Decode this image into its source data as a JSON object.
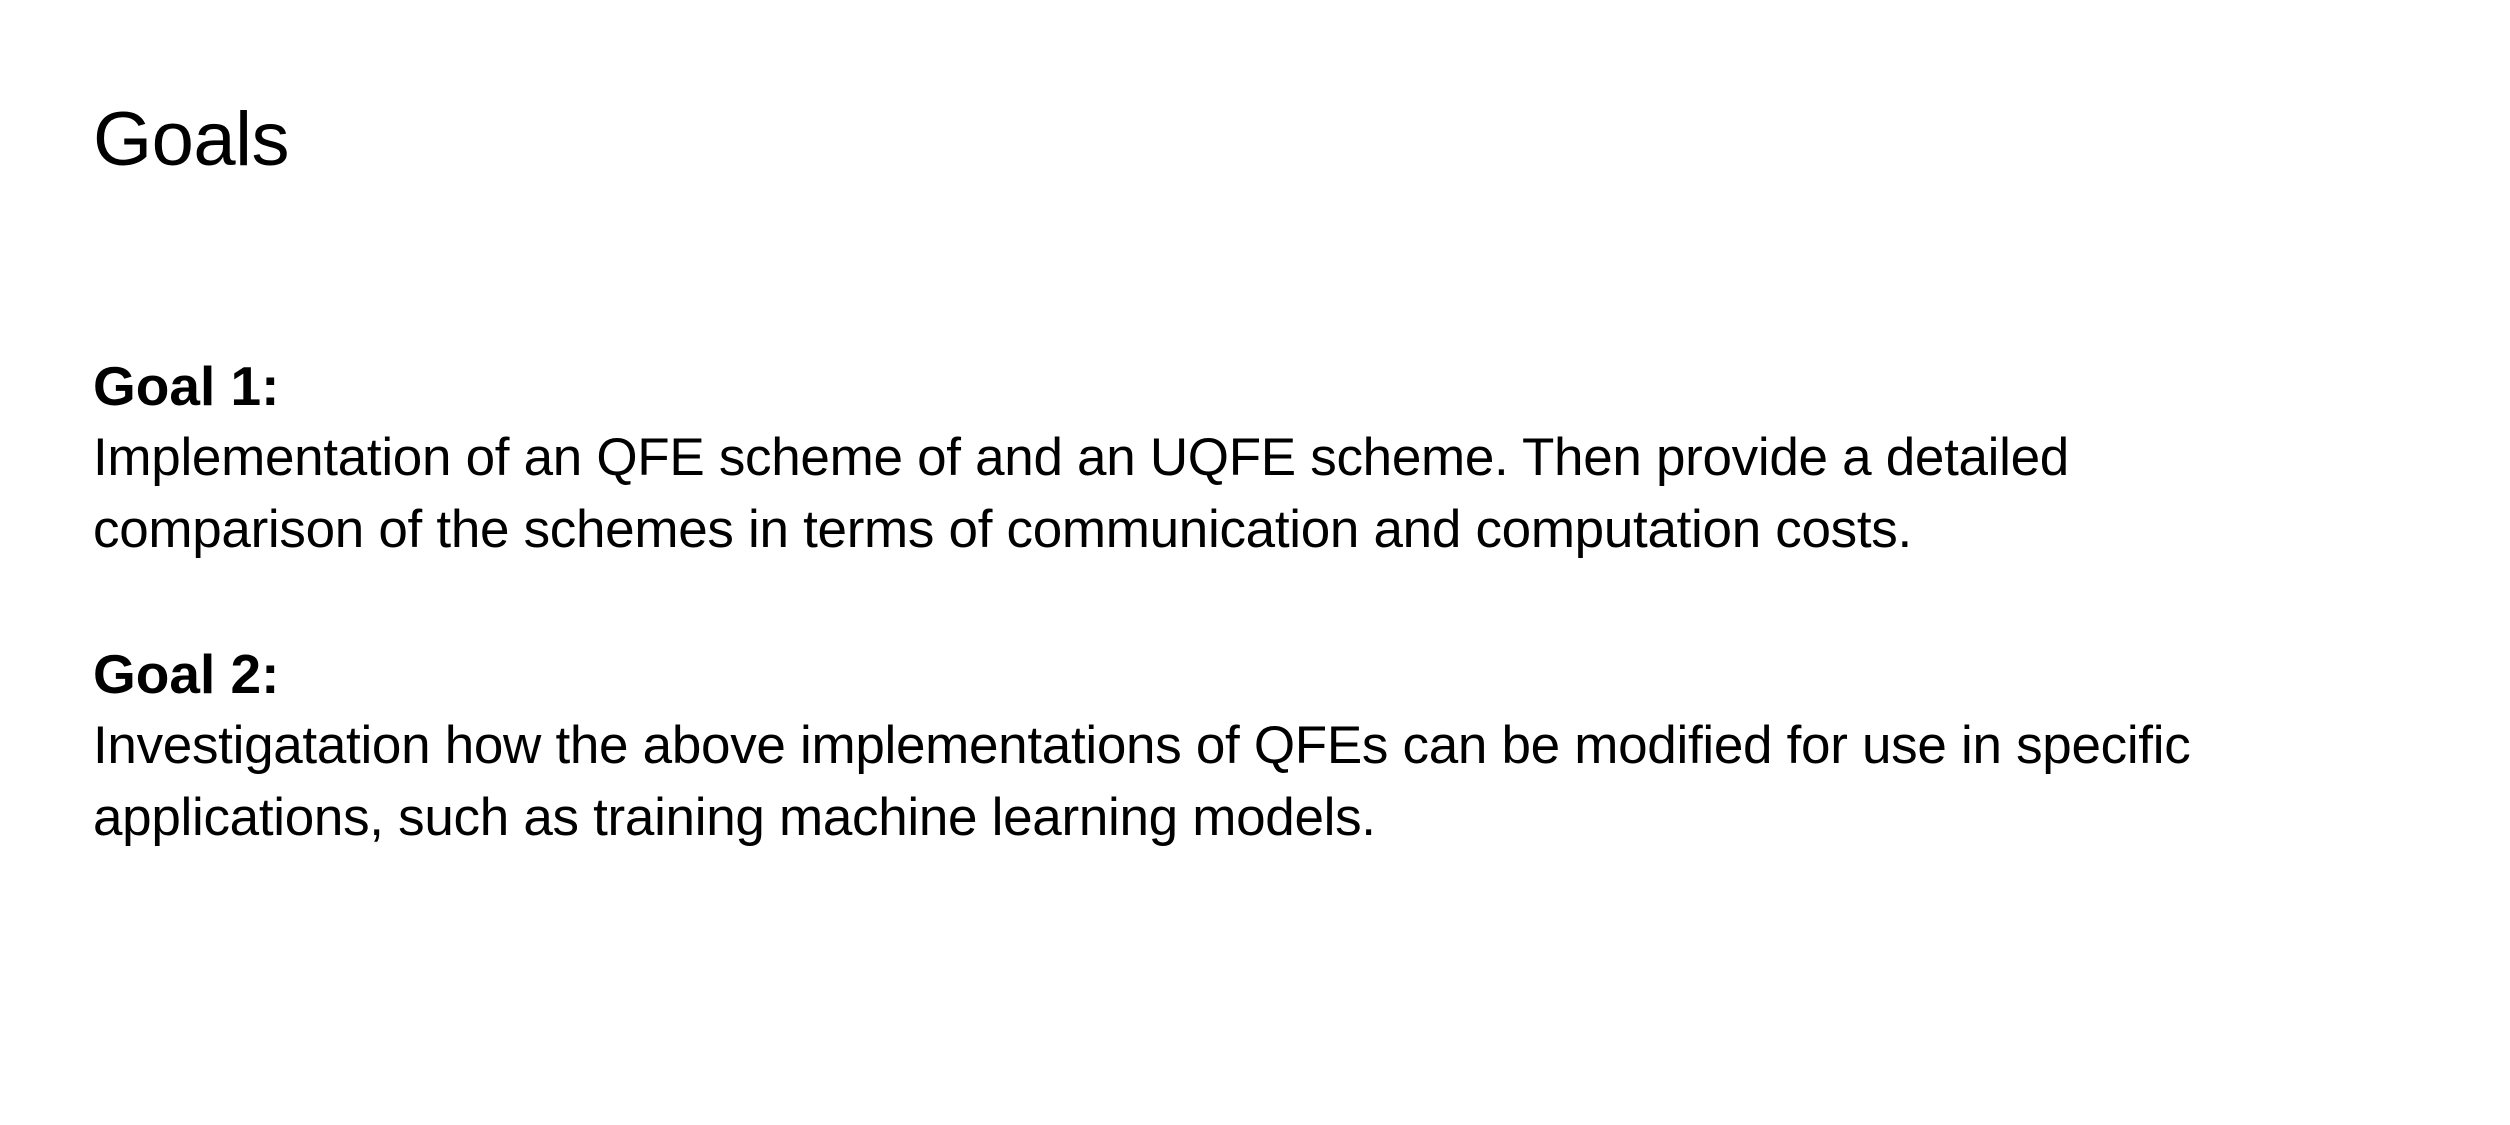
{
  "slide": {
    "title": "Goals",
    "goals": [
      {
        "heading": "Goal 1:",
        "lines": [
          "Implementation of an QFE scheme of and an UQFE scheme. Then provide a detailed",
          "comparison of the schemes in terms of communication and computation costs."
        ]
      },
      {
        "heading": "Goal 2:",
        "lines": [
          "Investigatation how the above implementations of QFEs can be modified for use in specific",
          "applications, such as training machine learning models."
        ]
      }
    ]
  }
}
